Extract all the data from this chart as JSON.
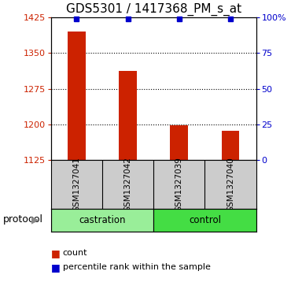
{
  "title": "GDS5301 / 1417368_PM_s_at",
  "samples": [
    "GSM1327041",
    "GSM1327042",
    "GSM1327039",
    "GSM1327040"
  ],
  "count_values": [
    1395,
    1312,
    1199,
    1186
  ],
  "percentile_values": [
    99,
    99,
    99,
    99
  ],
  "ylim_left": [
    1125,
    1425
  ],
  "ylim_right": [
    0,
    100
  ],
  "yticks_left": [
    1125,
    1200,
    1275,
    1350,
    1425
  ],
  "yticks_right": [
    0,
    25,
    50,
    75,
    100
  ],
  "ytick_labels_right": [
    "0",
    "25",
    "50",
    "75",
    "100%"
  ],
  "bar_color": "#cc2200",
  "marker_color": "#0000cc",
  "groups": [
    {
      "label": "castration",
      "indices": [
        0,
        1
      ],
      "color": "#99ee99"
    },
    {
      "label": "control",
      "indices": [
        2,
        3
      ],
      "color": "#44dd44"
    }
  ],
  "protocol_label": "protocol",
  "legend_count_label": "count",
  "legend_percentile_label": "percentile rank within the sample",
  "background_color": "#ffffff",
  "plot_bg_color": "#ffffff",
  "sample_box_color": "#cccccc",
  "title_fontsize": 11,
  "tick_fontsize": 8,
  "bar_width": 0.35
}
